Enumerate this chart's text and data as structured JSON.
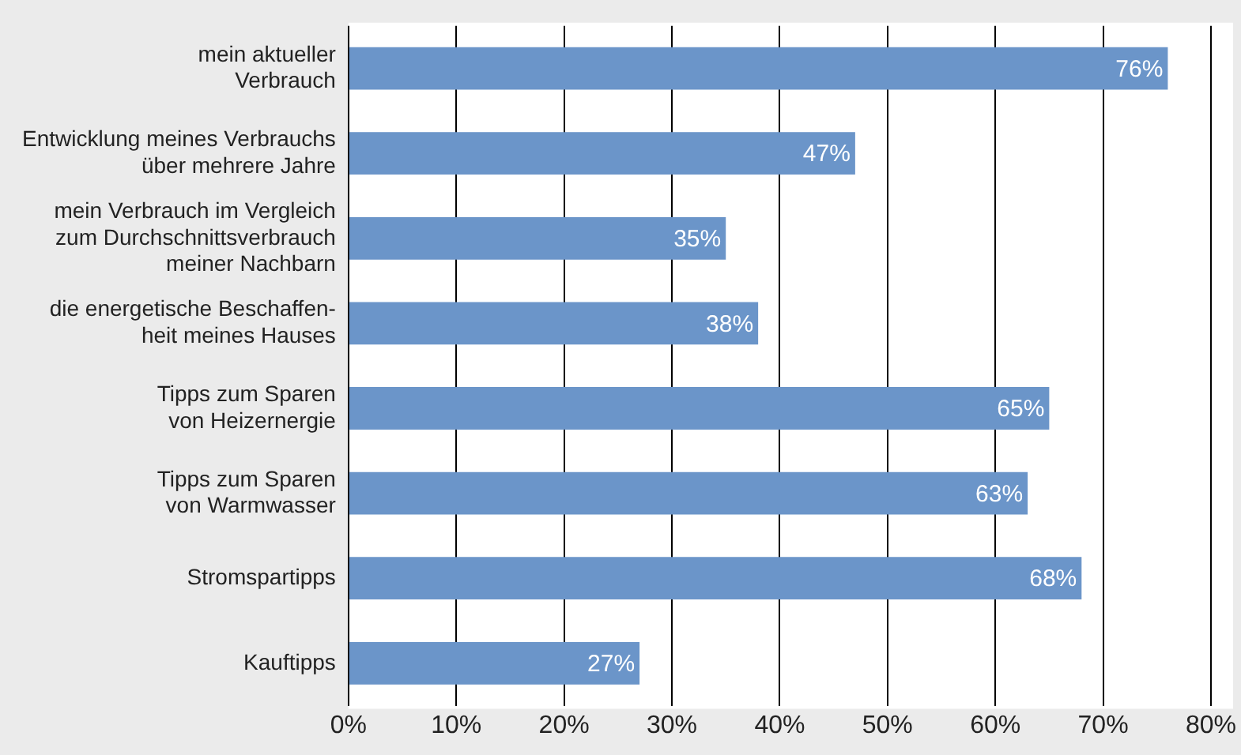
{
  "chart_data": {
    "type": "bar",
    "orientation": "horizontal",
    "categories": [
      "mein aktueller\nVerbrauch",
      "Entwicklung meines Verbrauchs\nüber mehrere Jahre",
      "mein Verbrauch im Vergleich\nzum Durchschnittsverbrauch\nmeiner Nachbarn",
      "die energetische Beschaffen-\nheit meines Hauses",
      "Tipps zum Sparen\nvon Heizernergie",
      "Tipps zum Sparen\nvon Warmwasser",
      "Stromspartipps",
      "Kauftipps"
    ],
    "values": [
      76,
      47,
      35,
      38,
      65,
      63,
      68,
      27
    ],
    "value_labels": [
      "76%",
      "47%",
      "35%",
      "38%",
      "65%",
      "63%",
      "68%",
      "27%"
    ],
    "color": "#6b95c9",
    "xlim": [
      0,
      80
    ],
    "xticks": [
      {
        "value": 0,
        "label": "0%"
      },
      {
        "value": 10,
        "label": "10%"
      },
      {
        "value": 20,
        "label": "20%"
      },
      {
        "value": 30,
        "label": "30%"
      },
      {
        "value": 40,
        "label": "40%"
      },
      {
        "value": 50,
        "label": "50%"
      },
      {
        "value": 60,
        "label": "60%"
      },
      {
        "value": 70,
        "label": "70%"
      },
      {
        "value": 80,
        "label": "80%"
      }
    ],
    "grid": "x",
    "legend": false
  }
}
